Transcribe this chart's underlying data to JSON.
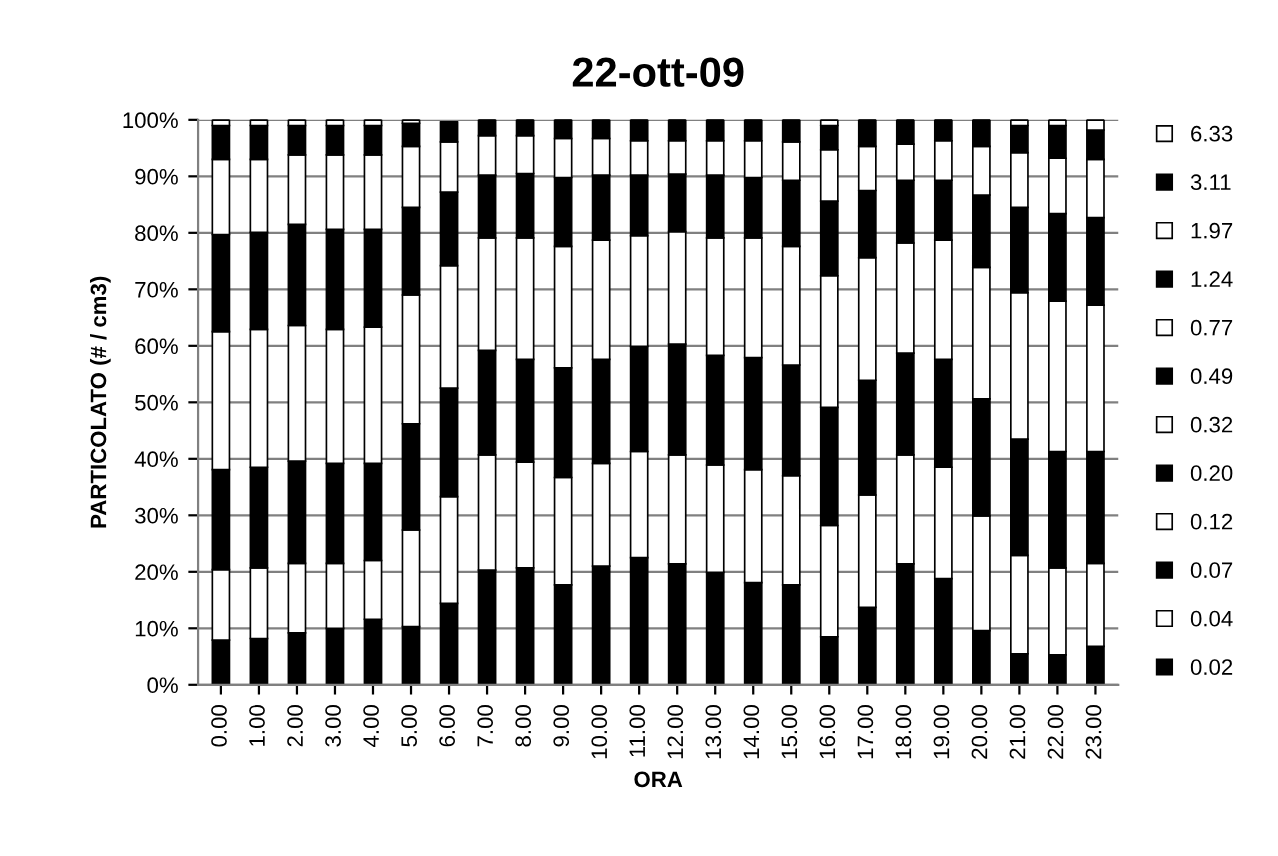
{
  "chart_data": {
    "type": "bar",
    "stacked": true,
    "title": "22-ott-09",
    "xlabel": "ORA",
    "ylabel": "PARTICOLATO (# / cm3)",
    "categories": [
      "0.00",
      "1.00",
      "2.00",
      "3.00",
      "4.00",
      "5.00",
      "6.00",
      "7.00",
      "8.00",
      "9.00",
      "10.00",
      "11.00",
      "12.00",
      "13.00",
      "14.00",
      "15.00",
      "16.00",
      "17.00",
      "18.00",
      "19.00",
      "20.00",
      "21.00",
      "22.00",
      "23.00"
    ],
    "ylim": [
      0,
      100
    ],
    "yticks": [
      {
        "value": 0,
        "label": "0%"
      },
      {
        "value": 10,
        "label": "10%"
      },
      {
        "value": 20,
        "label": "20%"
      },
      {
        "value": 30,
        "label": "30%"
      },
      {
        "value": 40,
        "label": "40%"
      },
      {
        "value": 50,
        "label": "50%"
      },
      {
        "value": 60,
        "label": "60%"
      },
      {
        "value": 70,
        "label": "70%"
      },
      {
        "value": 80,
        "label": "80%"
      },
      {
        "value": 90,
        "label": "90%"
      },
      {
        "value": 100,
        "label": "100%"
      }
    ],
    "grid": "y",
    "legend": "right",
    "series": [
      {
        "name": "0.02",
        "color": "#000000",
        "values": [
          7.9,
          8.2,
          9.2,
          10.0,
          11.6,
          10.3,
          14.4,
          20.3,
          20.7,
          17.7,
          21.0,
          22.5,
          21.4,
          19.9,
          18.1,
          17.7,
          8.5,
          13.7,
          21.4,
          18.8,
          9.6,
          5.5,
          5.3,
          6.8
        ]
      },
      {
        "name": "0.04",
        "color": "#ffffff",
        "values": [
          12.5,
          12.5,
          12.3,
          11.5,
          10.4,
          17.1,
          18.9,
          20.4,
          18.7,
          19.0,
          18.2,
          18.8,
          19.3,
          19.0,
          20.0,
          19.3,
          19.7,
          19.9,
          19.3,
          19.7,
          20.3,
          17.4,
          15.4,
          14.7
        ]
      },
      {
        "name": "0.07",
        "color": "#000000",
        "values": [
          17.7,
          17.8,
          18.1,
          17.7,
          17.2,
          18.8,
          19.2,
          18.5,
          18.2,
          19.4,
          18.4,
          18.6,
          19.6,
          19.4,
          19.8,
          19.6,
          20.9,
          20.3,
          18.0,
          19.1,
          20.7,
          20.6,
          20.6,
          19.8
        ]
      },
      {
        "name": "0.12",
        "color": "#ffffff",
        "values": [
          24.4,
          24.4,
          24.0,
          23.7,
          24.1,
          22.8,
          21.7,
          19.9,
          21.5,
          21.5,
          21.1,
          19.6,
          19.9,
          20.8,
          21.2,
          21.0,
          23.3,
          21.7,
          19.5,
          21.1,
          23.3,
          25.9,
          26.6,
          25.9
        ]
      },
      {
        "name": "0.20",
        "color": "#000000",
        "values": [
          17.2,
          17.2,
          17.9,
          17.7,
          17.3,
          15.5,
          13.0,
          11.1,
          11.4,
          12.2,
          11.5,
          10.7,
          10.2,
          11.1,
          10.7,
          11.7,
          13.2,
          11.9,
          11.1,
          10.6,
          12.8,
          15.1,
          15.5,
          15.5
        ]
      },
      {
        "name": "0.32",
        "color": "#ffffff",
        "values": [
          13.3,
          12.9,
          12.3,
          13.2,
          13.2,
          10.8,
          8.9,
          7.0,
          6.7,
          6.9,
          6.5,
          6.1,
          5.9,
          6.1,
          6.5,
          6.8,
          9.1,
          7.8,
          6.4,
          7.0,
          8.6,
          9.7,
          9.8,
          10.3
        ]
      },
      {
        "name": "0.49",
        "color": "#000000",
        "values": [
          6.0,
          6.0,
          5.2,
          5.2,
          5.2,
          4.1,
          3.5,
          2.8,
          2.8,
          3.3,
          3.3,
          3.7,
          3.7,
          3.7,
          3.7,
          3.9,
          4.3,
          4.7,
          4.3,
          3.7,
          4.7,
          4.8,
          5.8,
          5.2
        ]
      },
      {
        "name": "0.77",
        "color": "#ffffff",
        "values": [
          1.0,
          1.0,
          1.0,
          1.0,
          1.0,
          0.6,
          null,
          0,
          0,
          0,
          0,
          0,
          0,
          0,
          0,
          0,
          1.0,
          0,
          0,
          0,
          0,
          1.0,
          1.0,
          1.8
        ]
      },
      {
        "name": "1.24",
        "color": "#000000",
        "values": [
          0,
          0,
          0,
          0,
          0,
          0,
          0,
          0,
          0,
          0,
          0,
          0,
          0,
          0,
          0,
          0,
          0,
          0,
          0,
          0,
          0,
          0,
          0,
          0
        ]
      },
      {
        "name": "1.97",
        "color": "#ffffff",
        "values": [
          0,
          0,
          0,
          0,
          0,
          0,
          0,
          0,
          0,
          0,
          0,
          0,
          0,
          0,
          0,
          0,
          0,
          0,
          0,
          0,
          0,
          0,
          0,
          0
        ]
      },
      {
        "name": "3.11",
        "color": "#000000",
        "values": [
          0,
          0,
          0,
          0,
          0,
          0,
          0,
          0,
          0,
          0,
          0,
          0,
          0,
          0,
          0,
          0,
          0,
          0,
          0,
          0,
          0,
          0,
          0,
          0
        ]
      },
      {
        "name": "6.33",
        "color": "#ffffff",
        "values": [
          0,
          0,
          0,
          0,
          0,
          0,
          0,
          0,
          0,
          0,
          0,
          0,
          0,
          0,
          0,
          0,
          0,
          0,
          0,
          0,
          0,
          0,
          0,
          0
        ]
      }
    ]
  }
}
